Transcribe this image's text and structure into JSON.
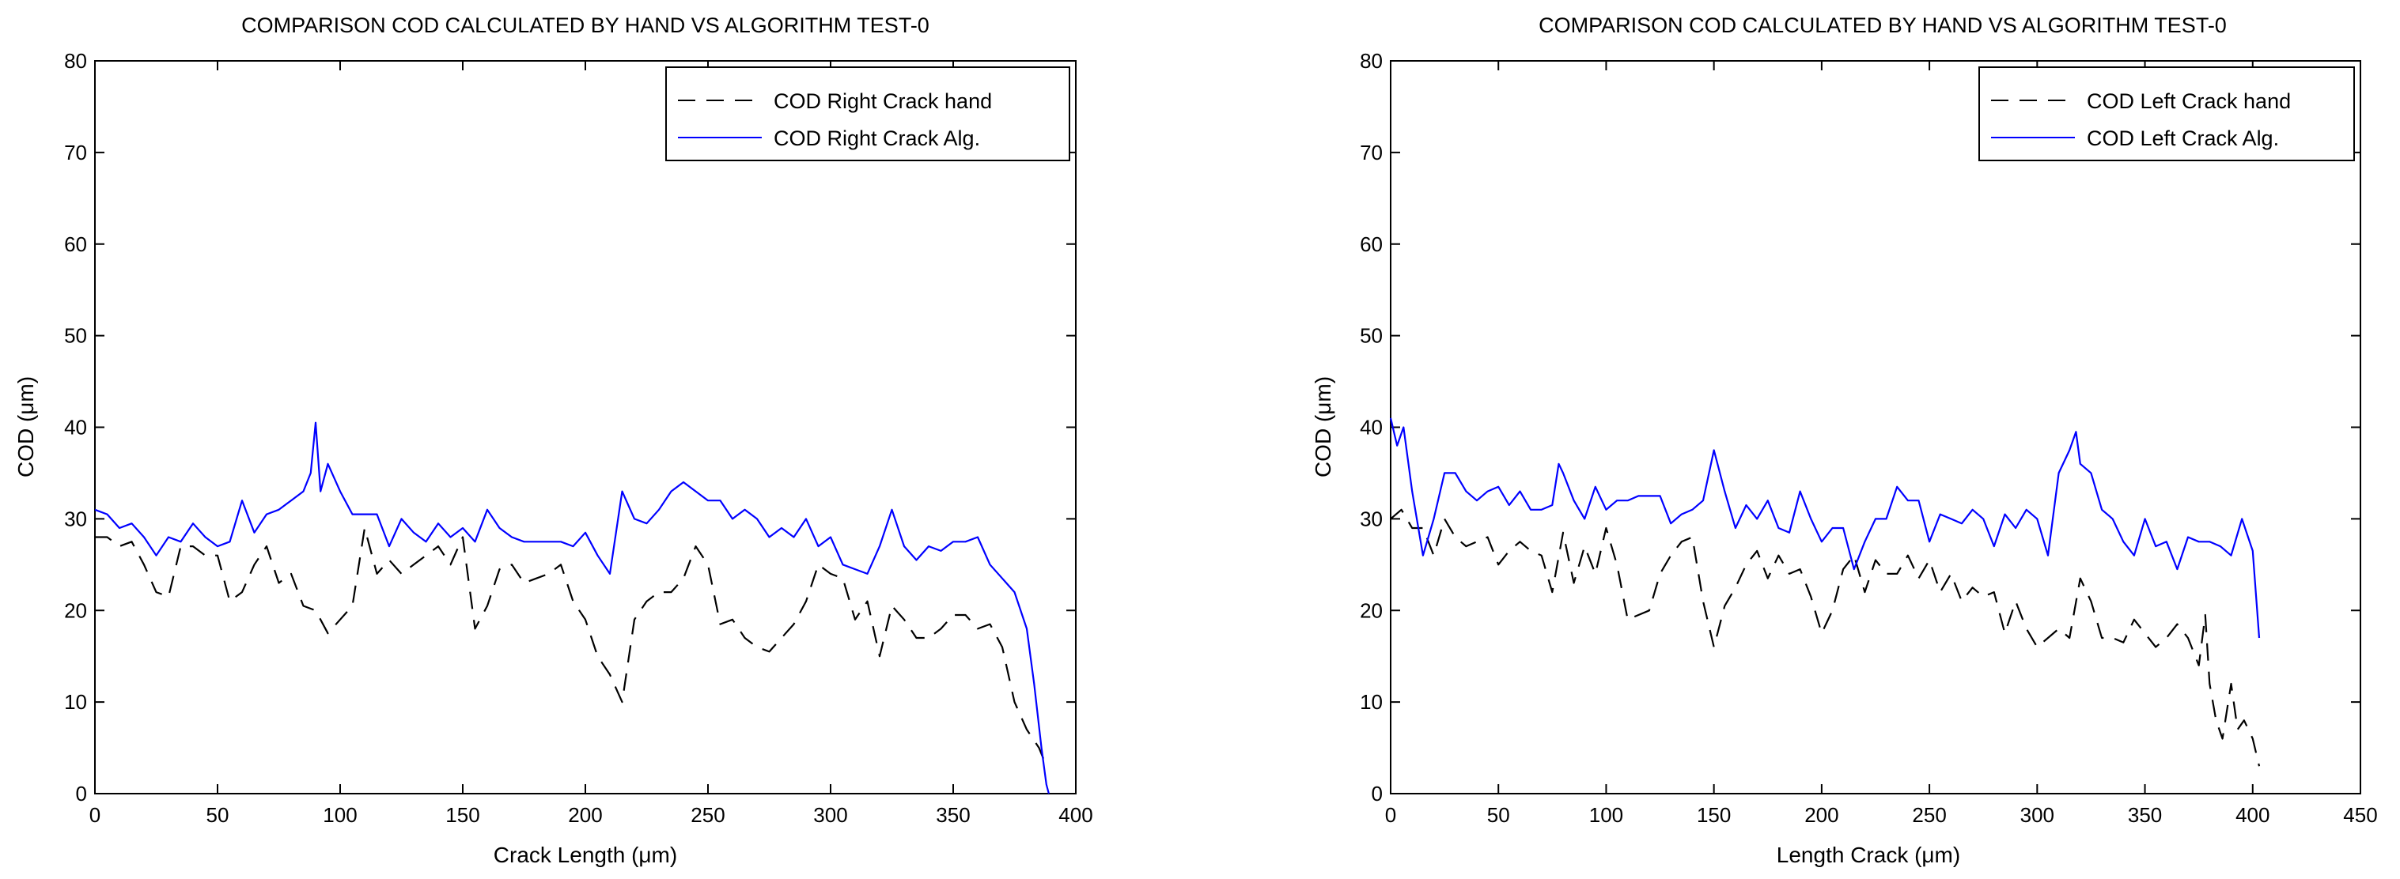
{
  "chart_data": [
    {
      "type": "line",
      "title": "COMPARISON COD CALCULATED BY HAND VS ALGORITHM TEST-0",
      "xlabel": "Crack Length (μm)",
      "ylabel": "COD (μm)",
      "xlim": [
        0,
        400
      ],
      "ylim": [
        0,
        80
      ],
      "xticks": [
        "0",
        "50",
        "100",
        "150",
        "200",
        "250",
        "300",
        "350",
        "400"
      ],
      "yticks": [
        "0",
        "10",
        "20",
        "30",
        "40",
        "50",
        "60",
        "70",
        "80"
      ],
      "grid": false,
      "legend_position": "top-right",
      "series": [
        {
          "name": "COD Right Crack hand",
          "color": "#000000",
          "dash": "dashed",
          "x": [
            0,
            5,
            10,
            15,
            20,
            25,
            30,
            35,
            40,
            45,
            50,
            55,
            60,
            65,
            70,
            75,
            80,
            85,
            90,
            95,
            100,
            105,
            110,
            115,
            120,
            125,
            130,
            135,
            140,
            145,
            150,
            155,
            160,
            165,
            170,
            175,
            180,
            185,
            190,
            195,
            200,
            205,
            210,
            215,
            220,
            225,
            230,
            235,
            240,
            245,
            250,
            255,
            260,
            265,
            270,
            275,
            280,
            285,
            290,
            295,
            300,
            305,
            310,
            315,
            320,
            325,
            330,
            335,
            340,
            345,
            350,
            355,
            360,
            365,
            370,
            375,
            380,
            385,
            388
          ],
          "values": [
            28,
            28,
            27,
            27.5,
            25,
            22,
            21.5,
            27,
            27,
            26,
            26,
            21,
            22,
            25,
            27,
            23,
            24,
            20.5,
            20,
            17.5,
            19,
            20.5,
            29,
            24,
            25.5,
            24,
            25,
            26,
            27,
            25,
            28,
            18,
            20.5,
            24.5,
            25,
            23,
            23.5,
            24,
            25,
            21,
            19,
            15,
            13,
            10,
            19,
            21,
            22,
            22,
            23.5,
            27,
            25,
            18.5,
            19,
            17,
            16,
            15.5,
            17,
            18.5,
            21,
            25,
            24,
            23.5,
            19,
            21,
            15,
            20.5,
            19,
            17,
            17,
            18,
            19.5,
            19.5,
            18,
            18.5,
            16,
            10,
            7,
            5,
            3
          ]
        },
        {
          "name": "COD Right Crack Alg.",
          "color": "#0000ff",
          "dash": "solid",
          "x": [
            0,
            5,
            10,
            15,
            20,
            25,
            30,
            35,
            40,
            45,
            50,
            55,
            60,
            65,
            70,
            75,
            80,
            85,
            88,
            90,
            92,
            95,
            100,
            105,
            110,
            115,
            120,
            125,
            130,
            135,
            140,
            145,
            150,
            155,
            160,
            165,
            170,
            175,
            180,
            185,
            190,
            195,
            200,
            205,
            210,
            215,
            220,
            225,
            230,
            235,
            240,
            245,
            250,
            255,
            260,
            265,
            270,
            275,
            280,
            285,
            290,
            295,
            300,
            305,
            310,
            315,
            320,
            325,
            330,
            335,
            340,
            345,
            350,
            355,
            360,
            365,
            370,
            375,
            380,
            383,
            386,
            388,
            389
          ],
          "values": [
            31,
            30.5,
            29,
            29.5,
            28,
            26,
            28,
            27.5,
            29.5,
            28,
            27,
            27.5,
            32,
            28.5,
            30.5,
            31,
            32,
            33,
            35,
            40.5,
            33,
            36,
            33,
            30.5,
            30.5,
            30.5,
            27,
            30,
            28.5,
            27.5,
            29.5,
            28,
            29,
            27.5,
            31,
            29,
            28,
            27.5,
            27.5,
            27.5,
            27.5,
            27,
            28.5,
            26,
            24,
            33,
            30,
            29.5,
            31,
            33,
            34,
            33,
            32,
            32,
            30,
            31,
            30,
            28,
            29,
            28,
            30,
            27,
            28,
            25,
            24.5,
            24,
            27,
            31,
            27,
            25.5,
            27,
            26.5,
            27.5,
            27.5,
            28,
            25,
            23.5,
            22,
            18,
            12,
            5,
            1,
            0
          ]
        }
      ]
    },
    {
      "type": "line",
      "title": "COMPARISON COD CALCULATED BY HAND VS ALGORITHM TEST-0",
      "xlabel": "Length Crack (μm)",
      "ylabel": "COD (μm)",
      "xlim": [
        0,
        450
      ],
      "ylim": [
        0,
        80
      ],
      "xticks": [
        "0",
        "50",
        "100",
        "150",
        "200",
        "250",
        "300",
        "350",
        "400",
        "450"
      ],
      "yticks": [
        "0",
        "10",
        "20",
        "30",
        "40",
        "50",
        "60",
        "70",
        "80"
      ],
      "grid": false,
      "legend_position": "top-right",
      "series": [
        {
          "name": "COD Left Crack hand",
          "color": "#000000",
          "dash": "dashed",
          "x": [
            0,
            5,
            10,
            15,
            20,
            25,
            30,
            35,
            40,
            45,
            50,
            55,
            60,
            65,
            70,
            75,
            80,
            85,
            90,
            95,
            100,
            105,
            110,
            115,
            120,
            125,
            130,
            135,
            140,
            145,
            150,
            155,
            160,
            165,
            170,
            175,
            180,
            185,
            190,
            195,
            200,
            205,
            210,
            215,
            220,
            225,
            230,
            235,
            240,
            245,
            250,
            255,
            260,
            265,
            270,
            275,
            280,
            285,
            290,
            295,
            300,
            305,
            310,
            315,
            320,
            325,
            330,
            335,
            340,
            345,
            350,
            355,
            360,
            365,
            370,
            375,
            378,
            380,
            383,
            386,
            390,
            393,
            396,
            400,
            403
          ],
          "values": [
            30,
            31,
            29,
            29,
            26,
            30,
            28,
            27,
            27.5,
            28,
            25,
            26.5,
            27.5,
            26.5,
            26,
            22,
            28.5,
            23,
            27,
            24,
            29,
            25,
            19,
            19.5,
            20,
            24,
            26,
            27.5,
            28,
            21,
            16,
            20.5,
            22.5,
            25,
            26.5,
            23.5,
            26,
            24,
            24.5,
            21.5,
            17.5,
            20,
            24.5,
            26,
            22,
            25.5,
            24,
            24,
            26,
            23.5,
            25.5,
            22,
            24,
            21,
            22.5,
            21.5,
            22,
            17.5,
            21,
            18,
            16,
            17,
            18,
            17,
            23.5,
            21,
            17,
            17,
            16.5,
            19,
            17.5,
            16,
            17,
            18.5,
            17,
            14,
            19.5,
            12,
            8,
            6,
            12,
            7,
            8,
            6,
            3
          ]
        },
        {
          "name": "COD Left Crack Alg.",
          "color": "#0000ff",
          "dash": "solid",
          "x": [
            0,
            3,
            6,
            10,
            15,
            20,
            25,
            30,
            35,
            40,
            45,
            50,
            55,
            60,
            65,
            70,
            75,
            78,
            80,
            85,
            90,
            95,
            100,
            105,
            110,
            115,
            120,
            125,
            130,
            135,
            140,
            145,
            150,
            155,
            160,
            165,
            170,
            175,
            180,
            185,
            190,
            195,
            200,
            205,
            210,
            215,
            220,
            225,
            230,
            235,
            240,
            245,
            250,
            255,
            260,
            265,
            270,
            275,
            280,
            285,
            290,
            295,
            300,
            305,
            310,
            315,
            318,
            320,
            325,
            330,
            335,
            340,
            345,
            350,
            355,
            360,
            365,
            370,
            375,
            380,
            385,
            390,
            395,
            400,
            403
          ],
          "values": [
            41,
            38,
            40,
            33,
            26,
            30,
            35,
            35,
            33,
            32,
            33,
            33.5,
            31.5,
            33,
            31,
            31,
            31.5,
            36,
            35,
            32,
            30,
            33.5,
            31,
            32,
            32,
            32.5,
            32.5,
            32.5,
            29.5,
            30.5,
            31,
            32,
            37.5,
            33,
            29,
            31.5,
            30,
            32,
            29,
            28.5,
            33,
            30,
            27.5,
            29,
            29,
            24.5,
            27.5,
            30,
            30,
            33.5,
            32,
            32,
            27.5,
            30.5,
            30,
            29.5,
            31,
            30,
            27,
            30.5,
            29,
            31,
            30,
            26,
            35,
            37.5,
            39.5,
            36,
            35,
            31,
            30,
            27.5,
            26,
            30,
            27,
            27.5,
            24.5,
            28,
            27.5,
            27.5,
            27,
            26,
            30,
            26.5,
            17
          ]
        }
      ]
    }
  ]
}
